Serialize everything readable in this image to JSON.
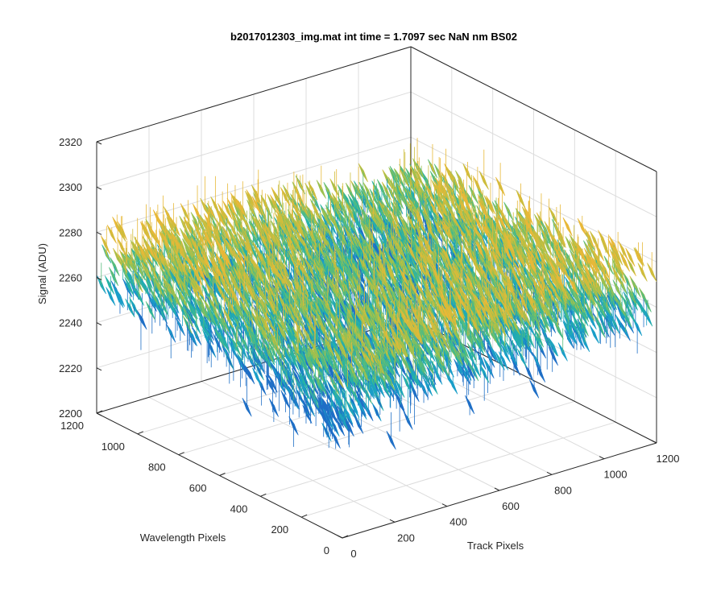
{
  "chart_data": {
    "type": "surface",
    "title": "b2017012303_img.mat int time = 1.7097 sec  NaN nm BS02",
    "xlabel": "Track Pixels",
    "ylabel": "Wavelength Pixels",
    "zlabel": "Signal (ADU)",
    "xlim": [
      0,
      1200
    ],
    "ylim": [
      0,
      1200
    ],
    "zlim": [
      2200,
      2320
    ],
    "x_ticks": [
      "0",
      "200",
      "400",
      "600",
      "800",
      "1000",
      "1200"
    ],
    "y_ticks": [
      "0",
      "200",
      "400",
      "600",
      "800",
      "1000",
      "1200"
    ],
    "z_ticks": [
      "2200",
      "2220",
      "2240",
      "2260",
      "2280",
      "2300",
      "2320"
    ],
    "grid": true,
    "colormap": [
      "#1f6fc6",
      "#1a9ec8",
      "#27b2a5",
      "#57bc7c",
      "#9cc14f",
      "#cdbd3d",
      "#e8b838"
    ],
    "surface_summary": {
      "x_extent": [
        0,
        1200
      ],
      "y_extent": [
        0,
        1200
      ],
      "z_typical_range": [
        2245,
        2285
      ],
      "z_min_approx": 2215,
      "z_max_approx": 2305
    }
  }
}
